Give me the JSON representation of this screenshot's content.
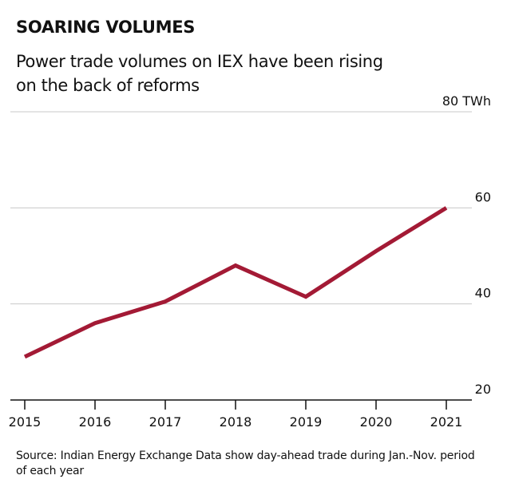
{
  "header": {
    "title": "SOARING VOLUMES",
    "subtitle": "Power trade volumes on IEX have been rising on the back of reforms"
  },
  "footer": {
    "source": "Source: Indian Energy Exchange Data show day-ahead trade during Jan.-Nov. period of each year"
  },
  "colors": {
    "line": "#a31a35",
    "grid": "#c8c8c8",
    "axis": "#111111"
  },
  "chart_data": {
    "type": "line",
    "title": "SOARING VOLUMES",
    "subtitle": "Power trade volumes on IEX have been rising on the back of reforms",
    "xlabel": "",
    "ylabel": "TWh",
    "categories": [
      "2015",
      "2016",
      "2017",
      "2018",
      "2019",
      "2020",
      "2021"
    ],
    "series": [
      {
        "name": "Day-ahead trade volume (TWh)",
        "values": [
          29,
          36,
          40.5,
          48,
          41.5,
          51,
          60
        ]
      }
    ],
    "ylim": [
      20,
      80
    ],
    "yticks": [
      20,
      40,
      60,
      80
    ],
    "ytick_labels": [
      "20",
      "40",
      "60",
      "80 TWh"
    ],
    "grid": true,
    "y_axis_side": "right",
    "legend": "none"
  }
}
